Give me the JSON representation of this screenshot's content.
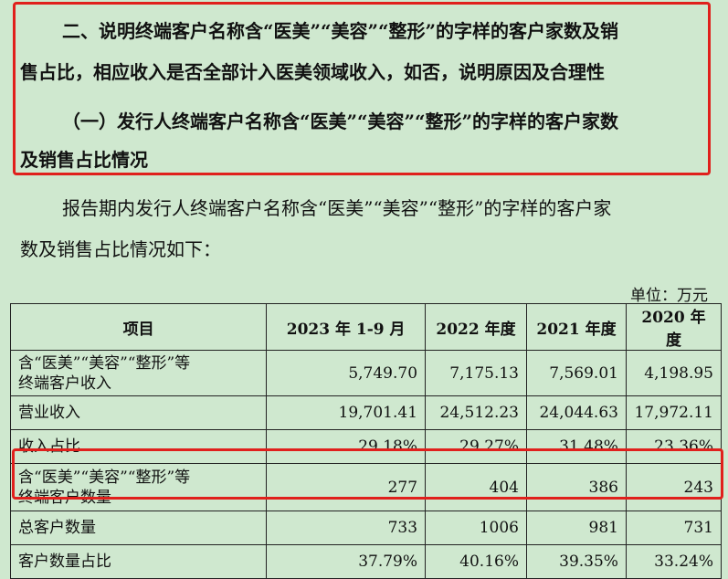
{
  "question": {
    "line1": "二、说明终端客户名称含“医美”“美容”“整形”的字样的客户家数及销",
    "line2": "售占比，相应收入是否全部计入医美领域收入，如否，说明原因及合理性",
    "line3": "（一）发行人终端客户名称含“医美”“美容”“整形”的字样的客户家数",
    "line4": "及销售占比情况"
  },
  "body": {
    "para_line1": "报告期内发行人终端客户名称含“医美”“美容”“整形”的字样的客户家",
    "para_line2": "数及销售占比情况如下："
  },
  "unit": "单位：万元",
  "table": {
    "headers": [
      "项目",
      "2023 年 1-9 月",
      "2022 年度",
      "2021 年度",
      "2020 年度"
    ],
    "rows": [
      {
        "label1": "含“医美”“美容”“整形”等",
        "label2": "终端客户收入",
        "values": [
          "5,749.70",
          "7,175.13",
          "7,569.01",
          "4,198.95"
        ]
      },
      {
        "label1": "营业收入",
        "label2": "",
        "values": [
          "19,701.41",
          "24,512.23",
          "24,044.63",
          "17,972.11"
        ]
      },
      {
        "label1": "收入占比",
        "label2": "",
        "values": [
          "29.18%",
          "29.27%",
          "31.48%",
          "23.36%"
        ]
      },
      {
        "label1": "含“医美”“美容”“整形”等",
        "label2": "终端客户数量",
        "values": [
          "277",
          "404",
          "386",
          "243"
        ]
      },
      {
        "label1": "总客户数量",
        "label2": "",
        "values": [
          "733",
          "1006",
          "981",
          "731"
        ]
      },
      {
        "label1": "客户数量占比",
        "label2": "",
        "values": [
          "37.79%",
          "40.16%",
          "39.35%",
          "33.24%"
        ]
      }
    ]
  },
  "colors": {
    "background": "#cfe8cf",
    "highlight_border": "#e0201c"
  }
}
